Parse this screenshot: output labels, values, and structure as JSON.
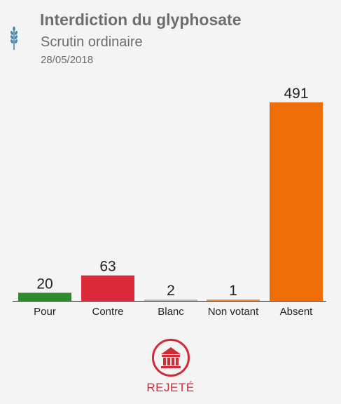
{
  "vote": {
    "title": "Interdiction du glyphosate",
    "type": "Scrutin ordinaire",
    "date": "28/05/2018",
    "result": "REJETÉ",
    "icons": {
      "topic": "wheat-icon",
      "result": "parliament-building-icon"
    }
  },
  "colors": {
    "pour": "#2f8a2f",
    "contre": "#dc2a3a",
    "blanc": "#bdbdbd",
    "non_votant": "#e89540",
    "absent": "#ef6d06",
    "result": "#d02c36",
    "title_text": "#6d6d6d"
  },
  "chart_data": {
    "type": "bar",
    "categories": [
      "Pour",
      "Contre",
      "Blanc",
      "Non votant",
      "Absent"
    ],
    "values": [
      20,
      63,
      2,
      1,
      491
    ],
    "ylim": [
      0,
      491
    ],
    "grid": false,
    "legend": "none"
  }
}
